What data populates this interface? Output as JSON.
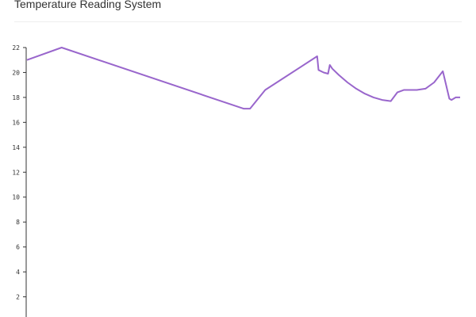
{
  "header": {
    "title": "Temperature Reading System"
  },
  "colors": {
    "series": "#9966cc",
    "axis": "#333333",
    "divider": "#eeeeee"
  },
  "chart_data": {
    "type": "line",
    "title": "Temperature Reading System",
    "xlabel": "",
    "ylabel": "",
    "ylim": [
      0,
      22
    ],
    "xlim": [
      0,
      100
    ],
    "yticks": [
      2,
      4,
      6,
      8,
      10,
      12,
      14,
      16,
      18,
      20,
      22
    ],
    "grid": false,
    "legend": "none",
    "series": [
      {
        "color": "#9966cc",
        "x": [
          0,
          8,
          50,
          51.5,
          55,
          67,
          67.3,
          68.5,
          69.5,
          69.9,
          70.5,
          72,
          74,
          76,
          78,
          80,
          82,
          84,
          85.5,
          87,
          88.5,
          90,
          92,
          94,
          96,
          97.5,
          98,
          98.5,
          99,
          100
        ],
        "y": [
          21.0,
          22.0,
          17.1,
          17.1,
          18.6,
          21.3,
          20.2,
          20.0,
          19.9,
          20.6,
          20.3,
          19.8,
          19.2,
          18.7,
          18.3,
          18.0,
          17.8,
          17.7,
          18.4,
          18.6,
          18.6,
          18.6,
          18.7,
          19.2,
          20.1,
          17.9,
          17.8,
          17.9,
          18.0,
          18.0
        ]
      }
    ]
  }
}
